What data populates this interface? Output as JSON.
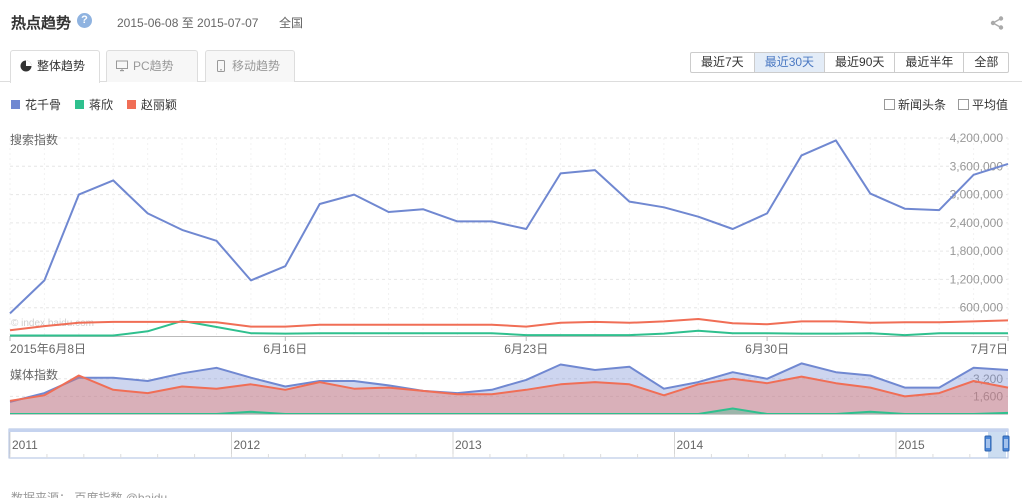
{
  "header": {
    "title": "热点趋势",
    "help_glyph": "?",
    "date_range": "2015-06-08 至 2015-07-07",
    "region": "全国"
  },
  "tabs": [
    {
      "label": "整体趋势",
      "icon": "pie-chart-icon",
      "active": true
    },
    {
      "label": "PC趋势",
      "icon": "monitor-icon",
      "active": false
    },
    {
      "label": "移动趋势",
      "icon": "mobile-icon",
      "active": false
    }
  ],
  "ranges": [
    {
      "label": "最近7天",
      "active": false
    },
    {
      "label": "最近30天",
      "active": true
    },
    {
      "label": "最近90天",
      "active": false
    },
    {
      "label": "最近半年",
      "active": false
    },
    {
      "label": "全部",
      "active": false
    }
  ],
  "options": [
    {
      "label": "新闻头条",
      "checked": false
    },
    {
      "label": "平均值",
      "checked": false
    }
  ],
  "watermark": "© index.baidu.com",
  "footer": {
    "text": "数据来源：  百度指数 @baidu"
  },
  "colors": {
    "series1": "#7088d1",
    "series2": "#2fc08e",
    "series3": "#f06e56"
  },
  "chart_data": [
    {
      "type": "line",
      "ylabel": "搜索指数",
      "ylim": [
        0,
        4200000
      ],
      "yticks": [
        "600,000",
        "1,200,000",
        "1,800,000",
        "2,400,000",
        "3,000,000",
        "3,600,000",
        "4,200,000"
      ],
      "yticks_values": [
        600000,
        1200000,
        1800000,
        2400000,
        3000000,
        3600000,
        4200000
      ],
      "x_tick_labels": [
        "2015年6月8日",
        "6月16日",
        "6月23日",
        "6月30日",
        "7月7日"
      ],
      "x_tick_indices": [
        0,
        8,
        15,
        22,
        29
      ],
      "grid": true,
      "series": [
        {
          "name": "花千骨",
          "values": [
            480000,
            1180000,
            3000000,
            3300000,
            2600000,
            2250000,
            2020000,
            1180000,
            1480000,
            2800000,
            3000000,
            2630000,
            2690000,
            2430000,
            2430000,
            2270000,
            3450000,
            3520000,
            2850000,
            2730000,
            2530000,
            2270000,
            2600000,
            3830000,
            4150000,
            3020000,
            2700000,
            2670000,
            3420000,
            3650000
          ]
        },
        {
          "name": "蒋欣",
          "values": [
            10000,
            10000,
            10000,
            10000,
            100000,
            320000,
            190000,
            60000,
            50000,
            60000,
            60000,
            60000,
            60000,
            60000,
            60000,
            20000,
            20000,
            20000,
            20000,
            50000,
            110000,
            60000,
            60000,
            50000,
            50000,
            60000,
            20000,
            60000,
            60000,
            60000
          ]
        },
        {
          "name": "赵丽颖",
          "values": [
            120000,
            210000,
            280000,
            300000,
            300000,
            300000,
            290000,
            200000,
            200000,
            240000,
            240000,
            240000,
            240000,
            240000,
            240000,
            200000,
            280000,
            300000,
            280000,
            310000,
            360000,
            270000,
            250000,
            310000,
            310000,
            280000,
            290000,
            290000,
            310000,
            330000
          ]
        }
      ]
    },
    {
      "type": "area",
      "ylabel": "媒体指数",
      "ylim": [
        0,
        4000
      ],
      "yticks": [
        "1,600",
        "3,200"
      ],
      "yticks_values": [
        1600,
        3200
      ],
      "series": [
        {
          "name": "花千骨",
          "values": [
            1100,
            1900,
            3300,
            3300,
            3000,
            3700,
            4200,
            3300,
            2500,
            3000,
            3000,
            2600,
            2100,
            1900,
            2200,
            3100,
            4500,
            4000,
            4300,
            2300,
            2900,
            3800,
            3200,
            5200,
            3800,
            3500,
            2400,
            2400,
            4200,
            4000
          ]
        },
        {
          "name": "蒋欣",
          "values": [
            0,
            0,
            0,
            0,
            0,
            0,
            0,
            200,
            0,
            0,
            0,
            0,
            0,
            0,
            0,
            0,
            0,
            0,
            0,
            0,
            0,
            500,
            0,
            0,
            0,
            200,
            0,
            0,
            0,
            100
          ]
        },
        {
          "name": "赵丽颖",
          "values": [
            1200,
            1700,
            3500,
            2200,
            1900,
            2500,
            2300,
            2700,
            2200,
            2900,
            2300,
            2400,
            2100,
            1800,
            1800,
            2200,
            2700,
            2900,
            2700,
            1700,
            2700,
            3200,
            2800,
            3400,
            2800,
            2400,
            1600,
            1900,
            3000,
            2400
          ]
        }
      ]
    },
    {
      "type": "area",
      "x_tick_labels": [
        "2011",
        "2012",
        "2013",
        "2014",
        "2015"
      ],
      "x_tick_indices": [
        0,
        1,
        2,
        3,
        4
      ]
    }
  ]
}
